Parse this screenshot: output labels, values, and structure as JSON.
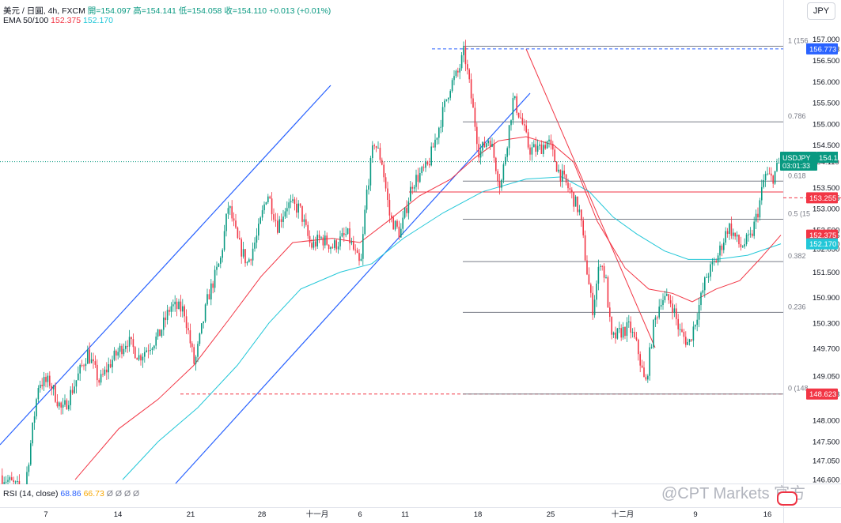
{
  "header": {
    "symbol": "美元 / 日圓, 4h, FXCM",
    "o_label": "開",
    "o": "=154.097",
    "h_label": "高",
    "h": "=154.141",
    "l_label": "低",
    "l": "=154.058",
    "c_label": "收",
    "c": "=154.110",
    "change": "+0.013 (+0.01%)",
    "ema_label": "EMA 50/100",
    "ema50": "152.375",
    "ema100": "152.170",
    "rsi_label": "RSI (14, close)",
    "rsi_value": "68.86",
    "rsi_ma": "66.73",
    "rsi_extra": "Ø Ø Ø Ø"
  },
  "currency": "JPY",
  "watermark": "@CPT Markets 官方",
  "colors": {
    "up": "#089981",
    "down": "#f23645",
    "ema50": "#f23645",
    "ema100": "#22c7d8",
    "channel": "#2962ff",
    "fib": "#787b86",
    "trend": "#f23645"
  },
  "chart_data": {
    "type": "candlestick",
    "title": "美元 / 日圓, 4h, FXCM",
    "x_ticks": [
      "7",
      "14",
      "21",
      "28",
      "十一月",
      "6",
      "11",
      "18",
      "25",
      "十二月",
      "9",
      "16"
    ],
    "y_ticks": [
      "146.600",
      "147.050",
      "147.500",
      "148.000",
      "148.623",
      "149.050",
      "149.700",
      "150.300",
      "150.900",
      "151.500",
      "152.050",
      "152.170",
      "152.375",
      "152.500",
      "153.000",
      "153.255",
      "153.500",
      "154.110",
      "154.500",
      "155.000",
      "155.500",
      "156.000",
      "156.500",
      "156.773",
      "157.000"
    ],
    "ylim": [
      146.5,
      157.2
    ],
    "last_price": {
      "label": "USDJPY",
      "value": "154.110",
      "countdown": "03:01:33"
    },
    "price_tags": [
      {
        "value": "156.773",
        "color": "#2962ff"
      },
      {
        "value": "153.255",
        "color": "#f23645"
      },
      {
        "value": "152.375",
        "color": "#f23645"
      },
      {
        "value": "152.170",
        "color": "#22c7d8"
      },
      {
        "value": "148.623",
        "color": "#f23645"
      }
    ],
    "fib_levels": [
      {
        "label": "1 (156",
        "price": 156.773
      },
      {
        "label": "0.786",
        "price": 155.05
      },
      {
        "label": "0.618",
        "price": 153.65
      },
      {
        "label": "0.5 (15",
        "price": 152.75
      },
      {
        "label": "0.382",
        "price": 151.75
      },
      {
        "label": "0.236",
        "price": 150.55
      },
      {
        "label": "0 (148",
        "price": 148.623
      }
    ],
    "horizontal_levels": [
      {
        "price": 156.773,
        "style": "dashed",
        "color": "#2962ff"
      },
      {
        "price": 153.255,
        "style": "dashed",
        "color": "#f23645"
      },
      {
        "price": 148.623,
        "style": "dashed",
        "color": "#f23645"
      },
      {
        "price": 153.3,
        "style": "solid",
        "color": "#f23645"
      }
    ],
    "price_anchors": [
      [
        0,
        146.7
      ],
      [
        30,
        146.3
      ],
      [
        48,
        148.9
      ],
      [
        62,
        148.9
      ],
      [
        78,
        148.2
      ],
      [
        90,
        148.7
      ],
      [
        110,
        149.6
      ],
      [
        125,
        148.9
      ],
      [
        140,
        149.4
      ],
      [
        160,
        149.9
      ],
      [
        175,
        149.5
      ],
      [
        200,
        150.0
      ],
      [
        215,
        150.7
      ],
      [
        232,
        150.6
      ],
      [
        245,
        149.3
      ],
      [
        262,
        150.9
      ],
      [
        278,
        151.8
      ],
      [
        288,
        153.1
      ],
      [
        300,
        152.2
      ],
      [
        312,
        151.7
      ],
      [
        325,
        152.4
      ],
      [
        337,
        153.4
      ],
      [
        350,
        152.6
      ],
      [
        362,
        153.1
      ],
      [
        378,
        153.0
      ],
      [
        392,
        152.1
      ],
      [
        405,
        152.3
      ],
      [
        420,
        152.1
      ],
      [
        438,
        152.4
      ],
      [
        455,
        151.6
      ],
      [
        462,
        153.3
      ],
      [
        472,
        154.6
      ],
      [
        482,
        154.1
      ],
      [
        492,
        152.8
      ],
      [
        505,
        152.4
      ],
      [
        520,
        153.6
      ],
      [
        540,
        154.0
      ],
      [
        555,
        155.0
      ],
      [
        568,
        155.9
      ],
      [
        578,
        156.2
      ],
      [
        586,
        156.7
      ],
      [
        595,
        155.6
      ],
      [
        605,
        154.3
      ],
      [
        618,
        154.7
      ],
      [
        632,
        153.5
      ],
      [
        648,
        155.6
      ],
      [
        658,
        155.1
      ],
      [
        668,
        154.4
      ],
      [
        680,
        154.4
      ],
      [
        692,
        154.6
      ],
      [
        705,
        153.9
      ],
      [
        720,
        153.4
      ],
      [
        732,
        152.9
      ],
      [
        742,
        151.4
      ],
      [
        748,
        150.6
      ],
      [
        758,
        151.8
      ],
      [
        765,
        151.3
      ],
      [
        772,
        149.9
      ],
      [
        785,
        150.1
      ],
      [
        795,
        150.2
      ],
      [
        805,
        149.7
      ],
      [
        815,
        148.8
      ],
      [
        825,
        150.2
      ],
      [
        835,
        150.9
      ],
      [
        848,
        150.8
      ],
      [
        858,
        150.1
      ],
      [
        870,
        149.8
      ],
      [
        880,
        150.5
      ],
      [
        892,
        151.4
      ],
      [
        905,
        151.8
      ],
      [
        920,
        152.6
      ],
      [
        935,
        152.1
      ],
      [
        948,
        152.3
      ],
      [
        958,
        153.0
      ],
      [
        966,
        153.8
      ],
      [
        975,
        153.7
      ],
      [
        985,
        154.11
      ]
    ],
    "ema50_anchors": [
      [
        95,
        146.6
      ],
      [
        150,
        147.8
      ],
      [
        200,
        148.5
      ],
      [
        245,
        149.3
      ],
      [
        290,
        150.4
      ],
      [
        330,
        151.4
      ],
      [
        370,
        152.2
      ],
      [
        420,
        152.3
      ],
      [
        455,
        152.2
      ],
      [
        490,
        152.7
      ],
      [
        530,
        153.3
      ],
      [
        570,
        153.7
      ],
      [
        600,
        154.2
      ],
      [
        630,
        154.6
      ],
      [
        665,
        154.7
      ],
      [
        700,
        154.5
      ],
      [
        725,
        154.1
      ],
      [
        755,
        152.7
      ],
      [
        790,
        151.6
      ],
      [
        820,
        151.1
      ],
      [
        850,
        151.0
      ],
      [
        875,
        150.8
      ],
      [
        905,
        151.1
      ],
      [
        935,
        151.3
      ],
      [
        960,
        151.8
      ],
      [
        987,
        152.375
      ]
    ],
    "ema100_anchors": [
      [
        155,
        146.6
      ],
      [
        200,
        147.5
      ],
      [
        250,
        148.3
      ],
      [
        300,
        149.3
      ],
      [
        340,
        150.3
      ],
      [
        380,
        151.1
      ],
      [
        430,
        151.5
      ],
      [
        470,
        151.7
      ],
      [
        510,
        152.3
      ],
      [
        560,
        152.9
      ],
      [
        610,
        153.4
      ],
      [
        665,
        153.7
      ],
      [
        710,
        153.75
      ],
      [
        745,
        153.4
      ],
      [
        775,
        152.8
      ],
      [
        805,
        152.4
      ],
      [
        840,
        152.0
      ],
      [
        870,
        151.8
      ],
      [
        905,
        151.8
      ],
      [
        945,
        151.9
      ],
      [
        987,
        152.17
      ]
    ]
  }
}
